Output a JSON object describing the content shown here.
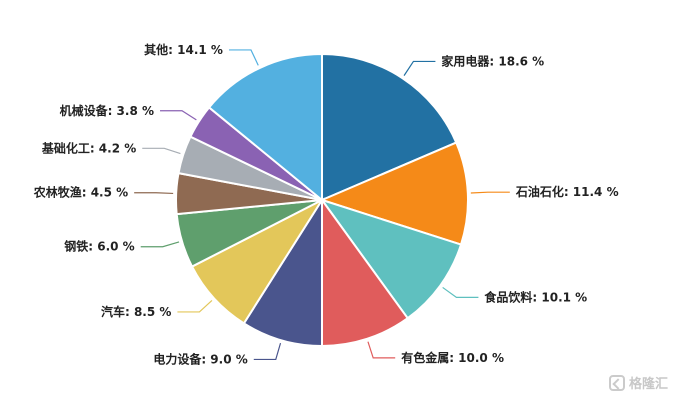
{
  "chart_data": {
    "type": "pie",
    "title": "",
    "categories": [
      "家用电器",
      "石油石化",
      "食品饮料",
      "有色金属",
      "电力设备",
      "汽车",
      "钢铁",
      "农林牧渔",
      "基础化工",
      "机械设备",
      "其他"
    ],
    "values": [
      18.6,
      11.4,
      10.1,
      10.0,
      9.0,
      8.5,
      6.0,
      4.5,
      4.2,
      3.8,
      14.1
    ],
    "colors": [
      "#2271a3",
      "#f58a18",
      "#5fc0bf",
      "#e05c5c",
      "#4a558d",
      "#e3c75a",
      "#5f9f6d",
      "#8f6a52",
      "#a7adb4",
      "#8a62b3",
      "#53b0e0"
    ],
    "unit_label": "%",
    "labels": [
      "家用电器: 18.6 %",
      "石油石化: 11.4 %",
      "食品饮料: 10.1 %",
      "有色金属: 10.0 %",
      "电力设备: 9.0 %",
      "汽车: 8.5 %",
      "钢铁: 6.0 %",
      "农林牧渔: 4.5 %",
      "基础化工: 4.2 %",
      "机械设备: 3.8 %",
      "其他: 14.1 %"
    ]
  },
  "watermark": {
    "text": "格隆汇"
  }
}
